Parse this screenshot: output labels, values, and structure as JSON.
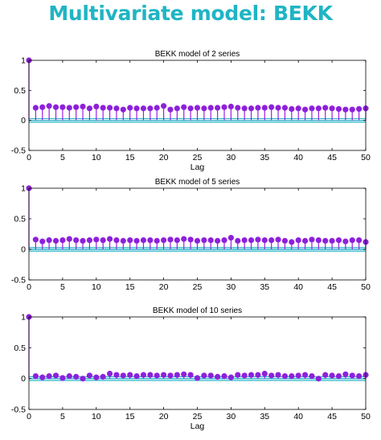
{
  "slide": {
    "title": "Multivariate model: BEKK"
  },
  "colors": {
    "stem": "#9b1fe8",
    "marker": "#8a22d8",
    "band": "#2fb6c9",
    "zero": "#2fb6c9",
    "axis": "#000000"
  },
  "chart_data": [
    {
      "type": "stem",
      "title": "BEKK model of 2 series",
      "xlabel": "Lag",
      "ylabel": "",
      "xlim": [
        0,
        50
      ],
      "ylim": [
        -0.5,
        1
      ],
      "xticks": [
        "0",
        "5",
        "10",
        "15",
        "20",
        "25",
        "30",
        "35",
        "40",
        "45",
        "50"
      ],
      "yticks": [
        "-0.5",
        "0",
        "0.5",
        "1"
      ],
      "band": [
        -0.03,
        0.03
      ],
      "x": [
        0,
        1,
        2,
        3,
        4,
        5,
        6,
        7,
        8,
        9,
        10,
        11,
        12,
        13,
        14,
        15,
        16,
        17,
        18,
        19,
        20,
        21,
        22,
        23,
        24,
        25,
        26,
        27,
        28,
        29,
        30,
        31,
        32,
        33,
        34,
        35,
        36,
        37,
        38,
        39,
        40,
        41,
        42,
        43,
        44,
        45,
        46,
        47,
        48,
        49,
        50
      ],
      "values": [
        1,
        0.21,
        0.22,
        0.24,
        0.22,
        0.22,
        0.21,
        0.22,
        0.23,
        0.2,
        0.23,
        0.21,
        0.21,
        0.2,
        0.18,
        0.21,
        0.2,
        0.2,
        0.2,
        0.21,
        0.24,
        0.18,
        0.2,
        0.22,
        0.2,
        0.21,
        0.2,
        0.21,
        0.21,
        0.22,
        0.23,
        0.21,
        0.2,
        0.2,
        0.21,
        0.21,
        0.22,
        0.21,
        0.21,
        0.19,
        0.2,
        0.18,
        0.2,
        0.2,
        0.21,
        0.2,
        0.19,
        0.18,
        0.18,
        0.19,
        0.2
      ]
    },
    {
      "type": "stem",
      "title": "BEKK model of 5 series",
      "xlabel": "",
      "ylabel": "",
      "xlim": [
        0,
        50
      ],
      "ylim": [
        -0.5,
        1
      ],
      "xticks": [
        "0",
        "5",
        "10",
        "15",
        "20",
        "25",
        "30",
        "35",
        "40",
        "45",
        "50"
      ],
      "yticks": [
        "-0.5",
        "0",
        "0.5",
        "1"
      ],
      "band": [
        -0.03,
        0.03
      ],
      "x": [
        0,
        1,
        2,
        3,
        4,
        5,
        6,
        7,
        8,
        9,
        10,
        11,
        12,
        13,
        14,
        15,
        16,
        17,
        18,
        19,
        20,
        21,
        22,
        23,
        24,
        25,
        26,
        27,
        28,
        29,
        30,
        31,
        32,
        33,
        34,
        35,
        36,
        37,
        38,
        39,
        40,
        41,
        42,
        43,
        44,
        45,
        46,
        47,
        48,
        49,
        50
      ],
      "values": [
        1,
        0.16,
        0.13,
        0.15,
        0.14,
        0.15,
        0.17,
        0.15,
        0.14,
        0.15,
        0.16,
        0.15,
        0.17,
        0.15,
        0.14,
        0.15,
        0.14,
        0.15,
        0.15,
        0.14,
        0.15,
        0.16,
        0.15,
        0.17,
        0.16,
        0.14,
        0.15,
        0.15,
        0.14,
        0.15,
        0.19,
        0.14,
        0.15,
        0.15,
        0.16,
        0.15,
        0.15,
        0.16,
        0.14,
        0.12,
        0.15,
        0.14,
        0.16,
        0.15,
        0.14,
        0.14,
        0.15,
        0.13,
        0.15,
        0.15,
        0.12
      ]
    },
    {
      "type": "stem",
      "title": "BEKK model of 10 series",
      "xlabel": "Lag",
      "ylabel": "",
      "xlim": [
        0,
        50
      ],
      "ylim": [
        -0.5,
        1
      ],
      "xticks": [
        "0",
        "5",
        "10",
        "15",
        "20",
        "25",
        "30",
        "35",
        "40",
        "45",
        "50"
      ],
      "yticks": [
        "-0.5",
        "0",
        "0.5",
        "1"
      ],
      "band": [
        -0.03,
        0.03
      ],
      "x": [
        0,
        1,
        2,
        3,
        4,
        5,
        6,
        7,
        8,
        9,
        10,
        11,
        12,
        13,
        14,
        15,
        16,
        17,
        18,
        19,
        20,
        21,
        22,
        23,
        24,
        25,
        26,
        27,
        28,
        29,
        30,
        31,
        32,
        33,
        34,
        35,
        36,
        37,
        38,
        39,
        40,
        41,
        42,
        43,
        44,
        45,
        46,
        47,
        48,
        49,
        50
      ],
      "values": [
        1,
        0.04,
        0.02,
        0.04,
        0.05,
        0.01,
        0.04,
        0.03,
        0.0,
        0.05,
        0.02,
        0.03,
        0.08,
        0.06,
        0.05,
        0.06,
        0.04,
        0.06,
        0.06,
        0.05,
        0.06,
        0.05,
        0.06,
        0.07,
        0.06,
        0.01,
        0.05,
        0.05,
        0.03,
        0.04,
        0.02,
        0.06,
        0.05,
        0.06,
        0.06,
        0.08,
        0.05,
        0.06,
        0.04,
        0.04,
        0.05,
        0.06,
        0.04,
        0.0,
        0.06,
        0.05,
        0.04,
        0.07,
        0.05,
        0.04,
        0.06
      ]
    }
  ]
}
